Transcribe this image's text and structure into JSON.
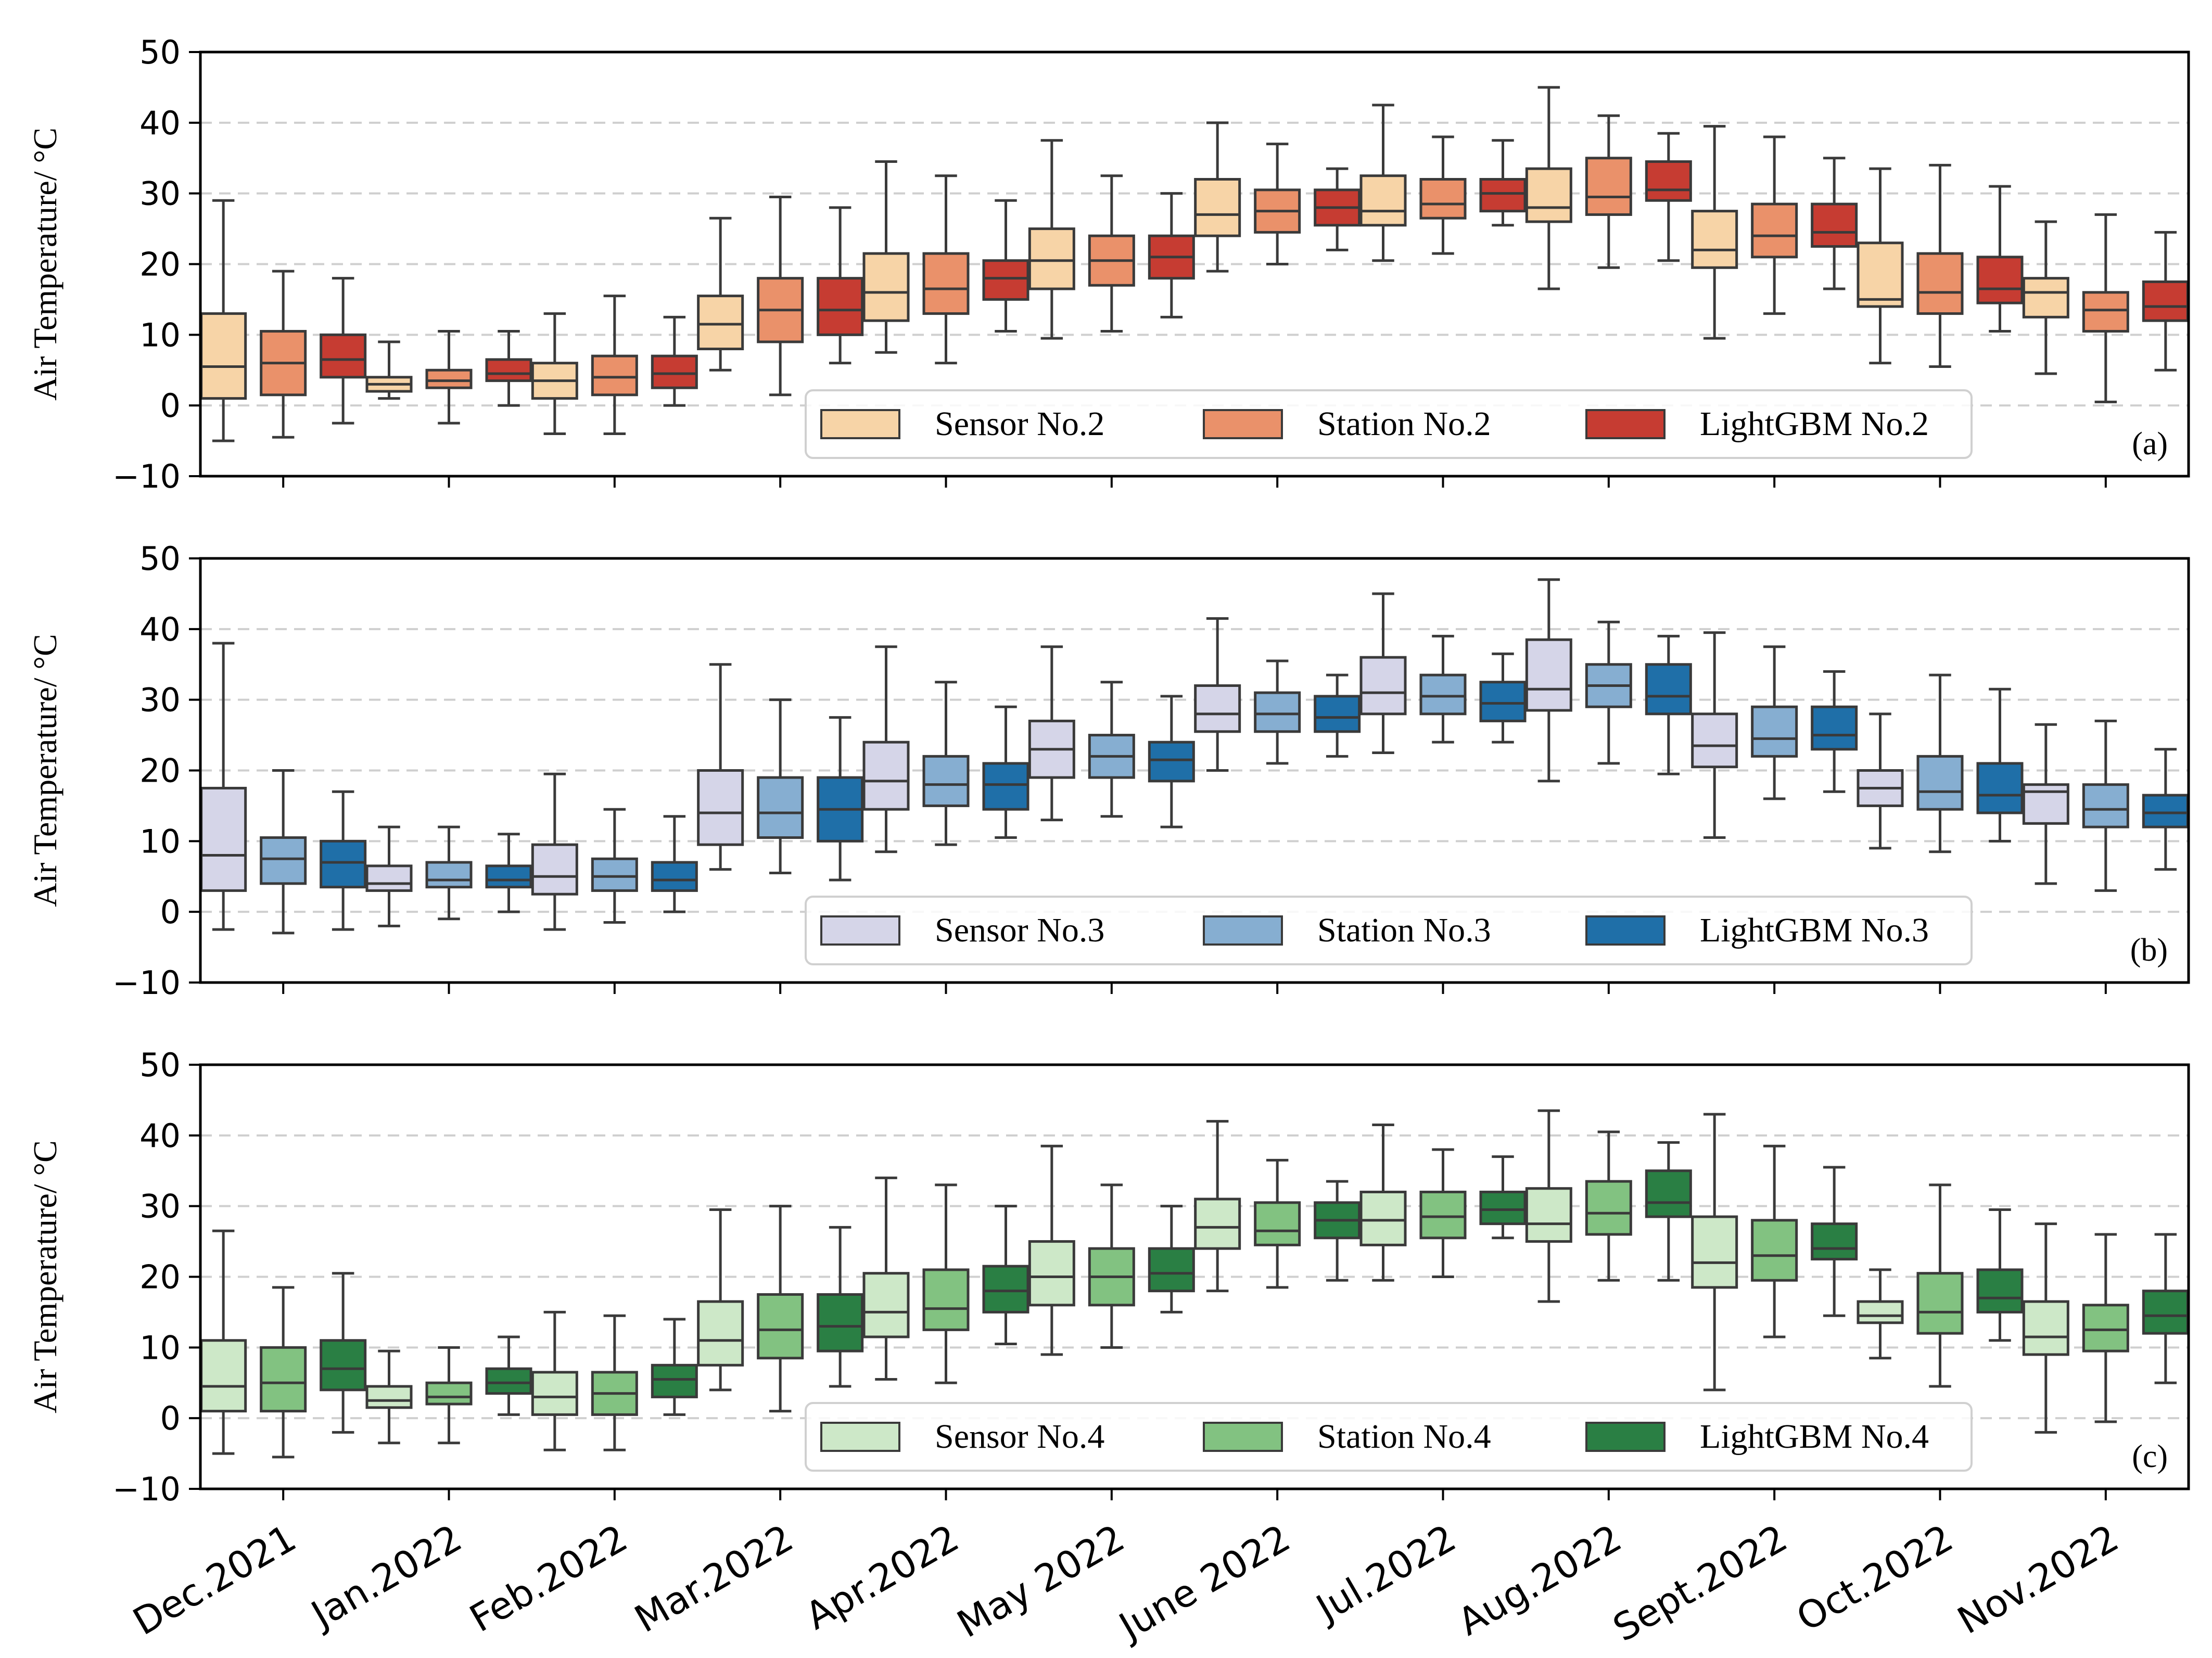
{
  "chart_data": {
    "type": "box",
    "categories": [
      "Dec.2021",
      "Jan.2022",
      "Feb.2022",
      "Mar.2022",
      "Apr.2022",
      "May 2022",
      "June 2022",
      "Jul.2022",
      "Aug.2022",
      "Sept.2022",
      "Oct.2022",
      "Nov.2022"
    ],
    "ylim": [
      -10,
      50
    ],
    "yticks": [
      -10,
      0,
      10,
      20,
      30,
      40,
      50
    ],
    "grid": "horizontal-dashed",
    "legend_placement": "bottom-center",
    "panels": [
      {
        "label": "(a)",
        "ylabel": "Air Temperature/ °C",
        "series": [
          {
            "name": "Sensor No.2",
            "color": "#f7d4a7",
            "stats": [
              [
                -5,
                1,
                5.5,
                13,
                29
              ],
              [
                1,
                2,
                3,
                4,
                9
              ],
              [
                -4,
                1,
                3.5,
                6,
                13
              ],
              [
                5,
                8,
                11.5,
                15.5,
                26.5
              ],
              [
                7.5,
                12,
                16,
                21.5,
                34.5
              ],
              [
                9.5,
                16.5,
                20.5,
                25,
                37.5
              ],
              [
                19,
                24,
                27,
                32,
                40
              ],
              [
                20.5,
                25.5,
                27.5,
                32.5,
                42.5
              ],
              [
                16.5,
                26,
                28,
                33.5,
                45
              ],
              [
                9.5,
                19.5,
                22,
                27.5,
                39.5
              ],
              [
                6,
                14,
                15,
                23,
                33.5
              ],
              [
                4.5,
                12.5,
                16,
                18,
                26
              ]
            ]
          },
          {
            "name": "Station No.2",
            "color": "#ea916a",
            "stats": [
              [
                -4.5,
                1.5,
                6,
                10.5,
                19
              ],
              [
                -2.5,
                2.5,
                3.5,
                5,
                10.5
              ],
              [
                -4,
                1.5,
                4,
                7,
                15.5
              ],
              [
                1.5,
                9,
                13.5,
                18,
                29.5
              ],
              [
                6,
                13,
                16.5,
                21.5,
                32.5
              ],
              [
                10.5,
                17,
                20.5,
                24,
                32.5
              ],
              [
                20,
                24.5,
                27.5,
                30.5,
                37
              ],
              [
                21.5,
                26.5,
                28.5,
                32,
                38
              ],
              [
                19.5,
                27,
                29.5,
                35,
                41
              ],
              [
                13,
                21,
                24,
                28.5,
                38
              ],
              [
                5.5,
                13,
                16,
                21.5,
                34
              ],
              [
                0.5,
                10.5,
                13.5,
                16,
                27
              ]
            ]
          },
          {
            "name": "LightGBM No.2",
            "color": "#c63c32",
            "stats": [
              [
                -2.5,
                4,
                6.5,
                10,
                18
              ],
              [
                0,
                3.5,
                4.5,
                6.5,
                10.5
              ],
              [
                0,
                2.5,
                4.5,
                7,
                12.5
              ],
              [
                6,
                10,
                13.5,
                18,
                28
              ],
              [
                10.5,
                15,
                18,
                20.5,
                29
              ],
              [
                12.5,
                18,
                21,
                24,
                30
              ],
              [
                22,
                25.5,
                28,
                30.5,
                33.5
              ],
              [
                25.5,
                27.5,
                30,
                32,
                37.5
              ],
              [
                20.5,
                29,
                30.5,
                34.5,
                38.5
              ],
              [
                16.5,
                22.5,
                24.5,
                28.5,
                35
              ],
              [
                10.5,
                14.5,
                16.5,
                21,
                31
              ],
              [
                5,
                12,
                14,
                17.5,
                24.5
              ]
            ]
          }
        ]
      },
      {
        "label": "(b)",
        "ylabel": "Air Temperature/ °C",
        "series": [
          {
            "name": "Sensor No.3",
            "color": "#d5d5e8",
            "stats": [
              [
                -2.5,
                3,
                8,
                17.5,
                38
              ],
              [
                -2,
                3,
                4,
                6.5,
                12
              ],
              [
                -2.5,
                2.5,
                5,
                9.5,
                19.5
              ],
              [
                6,
                9.5,
                14,
                20,
                35
              ],
              [
                8.5,
                14.5,
                18.5,
                24,
                37.5
              ],
              [
                13,
                19,
                23,
                27,
                37.5
              ],
              [
                20,
                25.5,
                28,
                32,
                41.5
              ],
              [
                22.5,
                28,
                31,
                36,
                45
              ],
              [
                18.5,
                28.5,
                31.5,
                38.5,
                47
              ],
              [
                10.5,
                20.5,
                23.5,
                28,
                39.5
              ],
              [
                9,
                15,
                17.5,
                20,
                28
              ],
              [
                4,
                12.5,
                17,
                18,
                26.5
              ]
            ]
          },
          {
            "name": "Station No.3",
            "color": "#86aed1",
            "stats": [
              [
                -3,
                4,
                7.5,
                10.5,
                20
              ],
              [
                -1,
                3.5,
                4.5,
                7,
                12
              ],
              [
                -1.5,
                3,
                5,
                7.5,
                14.5
              ],
              [
                5.5,
                10.5,
                14,
                19,
                30
              ],
              [
                9.5,
                15,
                18,
                22,
                32.5
              ],
              [
                13.5,
                19,
                22,
                25,
                32.5
              ],
              [
                21,
                25.5,
                28,
                31,
                35.5
              ],
              [
                24,
                28,
                30.5,
                33.5,
                39
              ],
              [
                21,
                29,
                32,
                35,
                41
              ],
              [
                16,
                22,
                24.5,
                29,
                37.5
              ],
              [
                8.5,
                14.5,
                17,
                22,
                33.5
              ],
              [
                3,
                12,
                14.5,
                18,
                27
              ]
            ]
          },
          {
            "name": "LightGBM No.3",
            "color": "#1f6fa8",
            "stats": [
              [
                -2.5,
                3.5,
                7,
                10,
                17
              ],
              [
                0,
                3.5,
                4.5,
                6.5,
                11
              ],
              [
                0,
                3,
                4.5,
                7,
                13.5
              ],
              [
                4.5,
                10,
                14.5,
                19,
                27.5
              ],
              [
                10.5,
                14.5,
                18,
                21,
                29
              ],
              [
                12,
                18.5,
                21.5,
                24,
                30.5
              ],
              [
                22,
                25.5,
                27.5,
                30.5,
                33.5
              ],
              [
                24,
                27,
                29.5,
                32.5,
                36.5
              ],
              [
                19.5,
                28,
                30.5,
                35,
                39
              ],
              [
                17,
                23,
                25,
                29,
                34
              ],
              [
                10,
                14,
                16.5,
                21,
                31.5
              ],
              [
                6,
                12,
                14,
                16.5,
                23
              ]
            ]
          }
        ]
      },
      {
        "label": "(c)",
        "ylabel": "Air Temperature/ °C",
        "series": [
          {
            "name": "Sensor No.4",
            "color": "#cde8c8",
            "stats": [
              [
                -5,
                1,
                4.5,
                11,
                26.5
              ],
              [
                -3.5,
                1.5,
                2.5,
                4.5,
                9.5
              ],
              [
                -4.5,
                0.5,
                3,
                6.5,
                15
              ],
              [
                4,
                7.5,
                11,
                16.5,
                29.5
              ],
              [
                5.5,
                11.5,
                15,
                20.5,
                34
              ],
              [
                9,
                16,
                20,
                25,
                38.5
              ],
              [
                18,
                24,
                27,
                31,
                42
              ],
              [
                19.5,
                24.5,
                28,
                32,
                41.5
              ],
              [
                16.5,
                25,
                27.5,
                32.5,
                43.5
              ],
              [
                4,
                18.5,
                22,
                28.5,
                43
              ],
              [
                8.5,
                13.5,
                14.5,
                16.5,
                21
              ],
              [
                -2,
                9,
                11.5,
                16.5,
                27.5
              ]
            ]
          },
          {
            "name": "Station No.4",
            "color": "#82c281",
            "stats": [
              [
                -5.5,
                1,
                5,
                10,
                18.5
              ],
              [
                -3.5,
                2,
                3,
                5,
                10
              ],
              [
                -4.5,
                0.5,
                3.5,
                6.5,
                14.5
              ],
              [
                1,
                8.5,
                12.5,
                17.5,
                30
              ],
              [
                5,
                12.5,
                15.5,
                21,
                33
              ],
              [
                10,
                16,
                20,
                24,
                33
              ],
              [
                18.5,
                24.5,
                26.5,
                30.5,
                36.5
              ],
              [
                20,
                25.5,
                28.5,
                32,
                38
              ],
              [
                19.5,
                26,
                29,
                33.5,
                40.5
              ],
              [
                11.5,
                19.5,
                23,
                28,
                38.5
              ],
              [
                4.5,
                12,
                15,
                20.5,
                33
              ],
              [
                -0.5,
                9.5,
                12.5,
                16,
                26
              ]
            ]
          },
          {
            "name": "LightGBM No.4",
            "color": "#2a7f44",
            "stats": [
              [
                -2,
                4,
                7,
                11,
                20.5
              ],
              [
                0.5,
                3.5,
                5,
                7,
                11.5
              ],
              [
                0.5,
                3,
                5.5,
                7.5,
                14
              ],
              [
                4.5,
                9.5,
                13,
                17.5,
                27
              ],
              [
                10.5,
                15,
                18,
                21.5,
                30
              ],
              [
                15,
                18,
                20.5,
                24,
                30
              ],
              [
                19.5,
                25.5,
                28,
                30.5,
                33.5
              ],
              [
                25.5,
                27.5,
                29.5,
                32,
                37
              ],
              [
                19.5,
                28.5,
                30.5,
                35,
                39
              ],
              [
                14.5,
                22.5,
                24,
                27.5,
                35.5
              ],
              [
                11,
                15,
                17,
                21,
                29.5
              ],
              [
                5,
                12,
                14.5,
                18,
                26
              ]
            ]
          }
        ]
      }
    ]
  }
}
